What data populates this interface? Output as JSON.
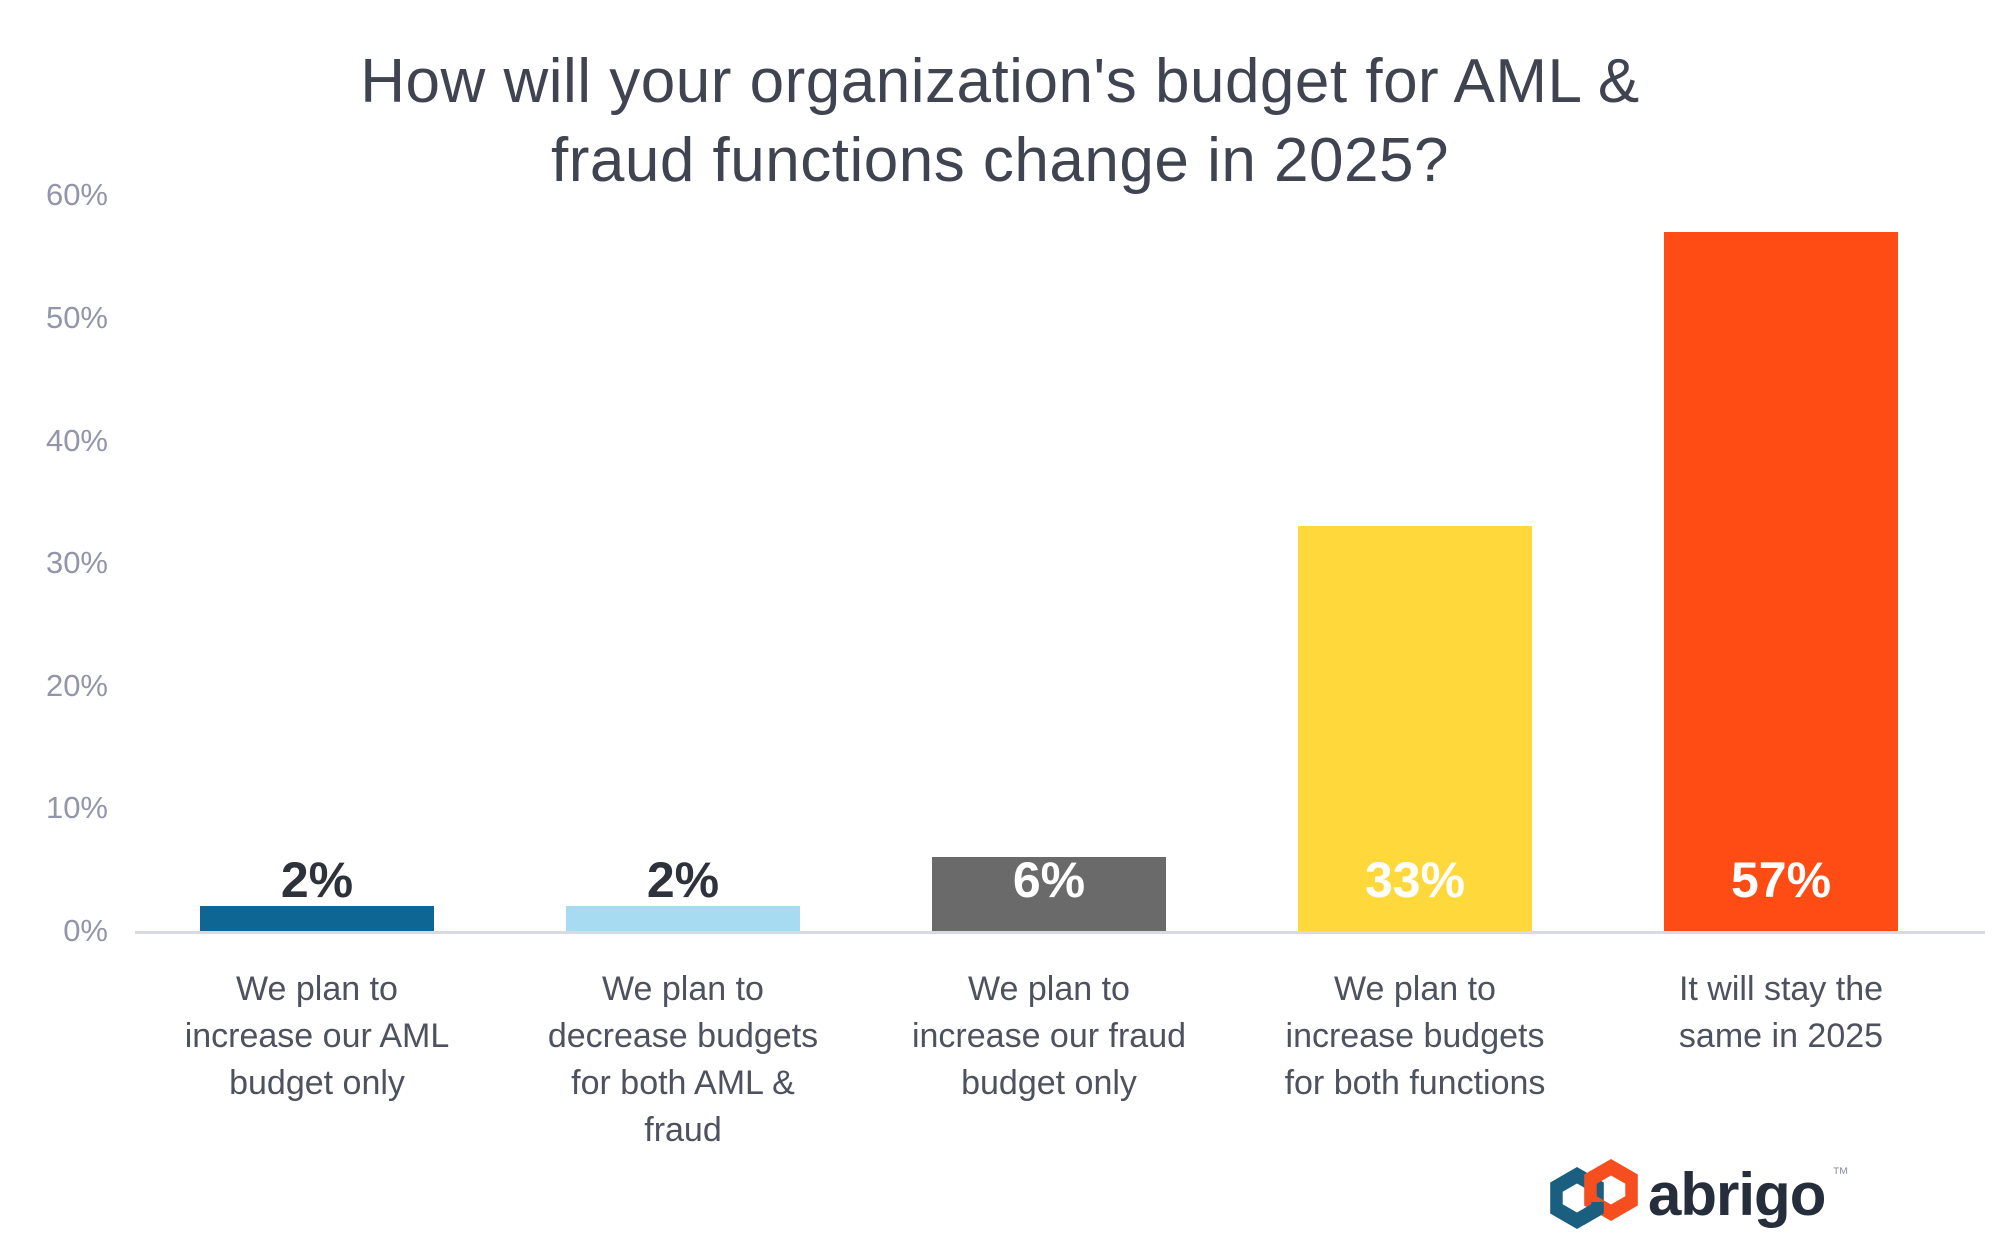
{
  "title": "How will your organization's budget for AML &\nfraud functions change in 2025?",
  "chart_data": {
    "type": "bar",
    "title": "How will your organization's budget for AML & fraud functions change in 2025?",
    "categories": [
      "We plan to\nincrease our AML\nbudget only",
      "We plan to\ndecrease budgets\nfor both AML &\nfraud",
      "We plan to\nincrease our fraud\nbudget only",
      "We plan to\nincrease budgets\nfor both functions",
      "It will stay the\nsame in 2025"
    ],
    "values": [
      2,
      2,
      6,
      33,
      57
    ],
    "value_labels": [
      "2%",
      "2%",
      "6%",
      "33%",
      "57%"
    ],
    "bar_colors": [
      "#0e6694",
      "#a7dbf1",
      "#6a6a6a",
      "#ffd93b",
      "#ff4b14"
    ],
    "value_label_colors": [
      "#2e323b",
      "#2e323b",
      "#ffffff",
      "#ffffff",
      "#ffffff"
    ],
    "xlabel": "",
    "ylabel": "",
    "ylim": [
      0,
      60
    ],
    "yticks": [
      "60%",
      "50%",
      "40%",
      "30%",
      "20%",
      "10%",
      "0%"
    ],
    "ytick_values": [
      60,
      50,
      40,
      30,
      20,
      10,
      0
    ],
    "grid": false,
    "legend": "none"
  },
  "colors": {
    "title": "#3f4450",
    "axis_label": "#9396ab",
    "category_label": "#4d525e",
    "baseline": "#d9d9e1",
    "background": "#ffffff"
  },
  "branding": {
    "logo_text": "abrigo",
    "trademark": "™",
    "logo_blue": "#1a5f80",
    "logo_orange": "#f64e1f",
    "logo_text_color": "#262d3b"
  }
}
